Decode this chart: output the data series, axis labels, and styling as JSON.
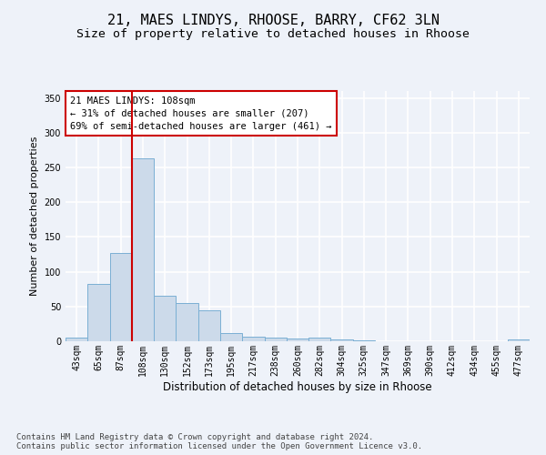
{
  "title1": "21, MAES LINDYS, RHOOSE, BARRY, CF62 3LN",
  "title2": "Size of property relative to detached houses in Rhoose",
  "xlabel": "Distribution of detached houses by size in Rhoose",
  "ylabel": "Number of detached properties",
  "categories": [
    "43sqm",
    "65sqm",
    "87sqm",
    "108sqm",
    "130sqm",
    "152sqm",
    "173sqm",
    "195sqm",
    "217sqm",
    "238sqm",
    "260sqm",
    "282sqm",
    "304sqm",
    "325sqm",
    "347sqm",
    "369sqm",
    "390sqm",
    "412sqm",
    "434sqm",
    "455sqm",
    "477sqm"
  ],
  "values": [
    5,
    82,
    127,
    263,
    65,
    55,
    45,
    12,
    7,
    5,
    4,
    5,
    2,
    1,
    0,
    0,
    0,
    0,
    0,
    0,
    2
  ],
  "bar_color": "#ccdaea",
  "bar_edge_color": "#7aafd4",
  "vline_x_index": 3,
  "vline_color": "#cc0000",
  "annotation_text": "21 MAES LINDYS: 108sqm\n← 31% of detached houses are smaller (207)\n69% of semi-detached houses are larger (461) →",
  "annotation_box_color": "#ffffff",
  "annotation_box_edge": "#cc0000",
  "ylim": [
    0,
    360
  ],
  "yticks": [
    0,
    50,
    100,
    150,
    200,
    250,
    300,
    350
  ],
  "footer": "Contains HM Land Registry data © Crown copyright and database right 2024.\nContains public sector information licensed under the Open Government Licence v3.0.",
  "background_color": "#eef2f9",
  "plot_bg_color": "#eef2f9",
  "grid_color": "#ffffff",
  "title1_fontsize": 11,
  "title2_fontsize": 9.5,
  "xlabel_fontsize": 8.5,
  "ylabel_fontsize": 8,
  "tick_fontsize": 7,
  "footer_fontsize": 6.5,
  "ann_fontsize": 7.5
}
